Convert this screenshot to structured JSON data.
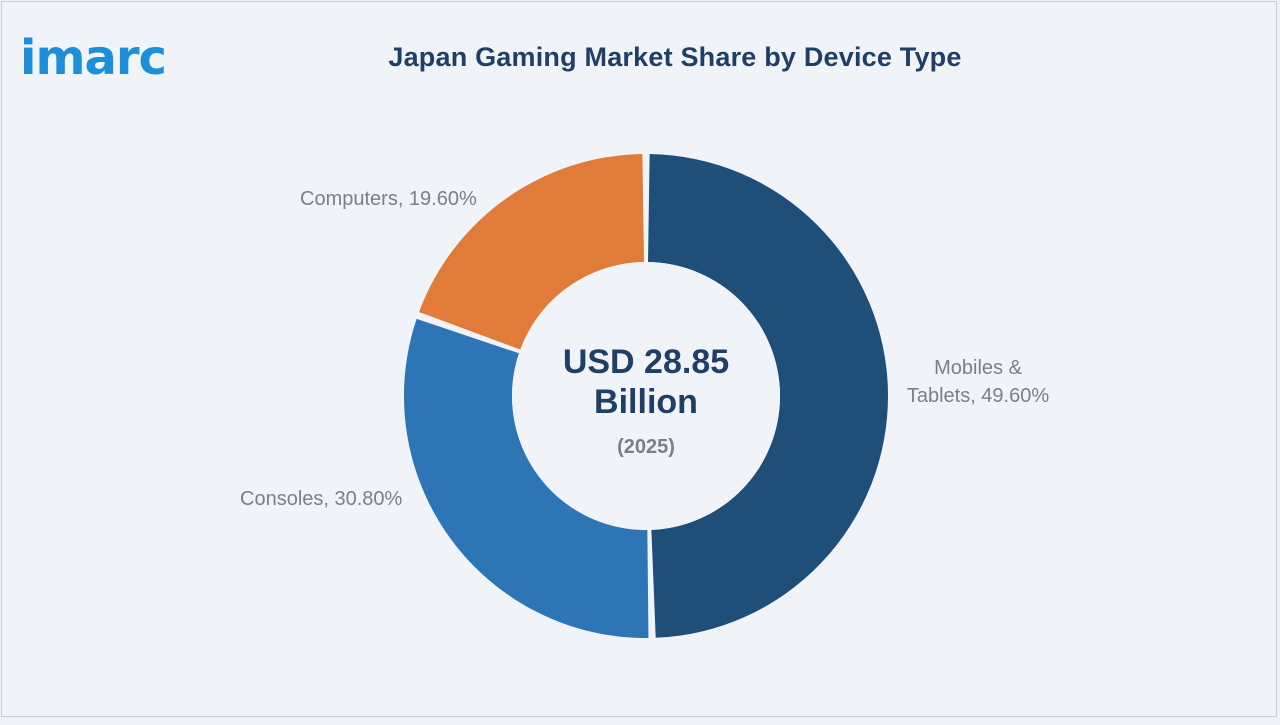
{
  "brand": {
    "logo_text": "imarc",
    "logo_color": "#1c8fd6"
  },
  "title": "Japan Gaming Market Share by Device Type",
  "center": {
    "value_line1": "USD 28.85",
    "value_line2": "Billion",
    "year": "(2025)"
  },
  "labels": {
    "mobiles_line1": "Mobiles &",
    "mobiles_line2": "Tablets, 49.60%",
    "consoles": "Consoles, 30.80%",
    "computers": "Computers, 19.60%"
  },
  "chart_data": {
    "type": "pie",
    "title": "Japan Gaming Market Share by Device Type",
    "categories": [
      "Mobiles & Tablets",
      "Consoles",
      "Computers"
    ],
    "values": [
      49.6,
      30.8,
      19.6
    ],
    "unit": "%",
    "colors": [
      "#1f4e79",
      "#2e75b6",
      "#e07b39"
    ],
    "donut": true,
    "total_label": "USD 28.85 Billion (2025)"
  }
}
